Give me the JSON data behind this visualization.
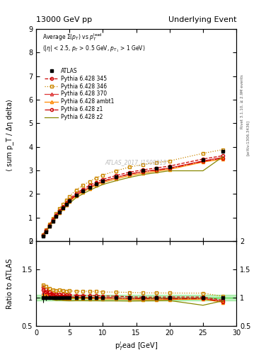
{
  "title_left": "13000 GeV pp",
  "title_right": "Underlying Event",
  "watermark": "ATLAS_2017_I1509919",
  "right_label_top": "Rivet 3.1.10, ≥ 2.9M events",
  "right_label_bottom": "[arXiv:1306.3436]",
  "ylabel_main": "⟨ sum p_T / Δη delta⟩",
  "ylabel_ratio": "Ratio to ATLAS",
  "xlabel": "p$_T^l$ead [GeV]",
  "ylim_main": [
    0,
    9
  ],
  "ylim_ratio": [
    0.5,
    2.0
  ],
  "xlim": [
    0,
    30
  ],
  "atlas_x": [
    1.0,
    1.5,
    2.0,
    2.5,
    3.0,
    3.5,
    4.0,
    4.5,
    5.0,
    6.0,
    7.0,
    8.0,
    9.0,
    10.0,
    12.0,
    14.0,
    16.0,
    18.0,
    20.0,
    25.0,
    28.0
  ],
  "atlas_y": [
    0.22,
    0.4,
    0.62,
    0.85,
    1.05,
    1.22,
    1.4,
    1.57,
    1.7,
    1.95,
    2.12,
    2.28,
    2.42,
    2.55,
    2.72,
    2.88,
    3.0,
    3.08,
    3.15,
    3.45,
    3.8
  ],
  "atlas_yerr": [
    0.02,
    0.02,
    0.02,
    0.02,
    0.02,
    0.02,
    0.02,
    0.02,
    0.02,
    0.02,
    0.02,
    0.02,
    0.02,
    0.02,
    0.02,
    0.02,
    0.02,
    0.02,
    0.05,
    0.05,
    0.06
  ],
  "pythia_x": [
    1.0,
    1.5,
    2.0,
    2.5,
    3.0,
    3.5,
    4.0,
    4.5,
    5.0,
    6.0,
    7.0,
    8.0,
    9.0,
    10.0,
    12.0,
    14.0,
    16.0,
    18.0,
    20.0,
    25.0,
    28.0
  ],
  "series": [
    {
      "label": "Pythia 6.428 345",
      "color": "#cc0000",
      "linestyle": "--",
      "marker": "o",
      "markersize": 3,
      "y": [
        0.26,
        0.46,
        0.68,
        0.92,
        1.12,
        1.3,
        1.48,
        1.64,
        1.78,
        2.03,
        2.2,
        2.36,
        2.5,
        2.62,
        2.78,
        2.92,
        3.02,
        3.1,
        3.18,
        3.48,
        3.62
      ]
    },
    {
      "label": "Pythia 6.428 346",
      "color": "#cc8800",
      "linestyle": ":",
      "marker": "s",
      "markersize": 3,
      "y": [
        0.27,
        0.48,
        0.72,
        0.97,
        1.18,
        1.38,
        1.57,
        1.74,
        1.9,
        2.17,
        2.36,
        2.53,
        2.68,
        2.8,
        2.98,
        3.14,
        3.25,
        3.33,
        3.4,
        3.72,
        3.88
      ]
    },
    {
      "label": "Pythia 6.428 370",
      "color": "#dd3333",
      "linestyle": "-",
      "marker": "^",
      "markersize": 3,
      "y": [
        0.24,
        0.43,
        0.65,
        0.88,
        1.07,
        1.24,
        1.42,
        1.58,
        1.71,
        1.96,
        2.13,
        2.28,
        2.42,
        2.54,
        2.7,
        2.84,
        2.95,
        3.02,
        3.1,
        3.4,
        3.55
      ]
    },
    {
      "label": "Pythia 6.428 ambt1",
      "color": "#ff8800",
      "linestyle": "-",
      "marker": "^",
      "markersize": 3,
      "y": [
        0.23,
        0.42,
        0.63,
        0.85,
        1.04,
        1.21,
        1.38,
        1.54,
        1.67,
        1.91,
        2.08,
        2.23,
        2.37,
        2.48,
        2.64,
        2.78,
        2.88,
        2.96,
        3.04,
        3.35,
        3.48
      ]
    },
    {
      "label": "Pythia 6.428 z1",
      "color": "#cc0000",
      "linestyle": "-.",
      "marker": "o",
      "markersize": 3,
      "y": [
        0.25,
        0.44,
        0.66,
        0.89,
        1.08,
        1.25,
        1.43,
        1.58,
        1.72,
        1.96,
        2.13,
        2.28,
        2.42,
        2.54,
        2.7,
        2.84,
        2.94,
        3.01,
        3.08,
        3.38,
        3.52
      ]
    },
    {
      "label": "Pythia 6.428 z2",
      "color": "#888800",
      "linestyle": "-",
      "marker": null,
      "markersize": 0,
      "y": [
        0.22,
        0.4,
        0.61,
        0.82,
        1.0,
        1.16,
        1.33,
        1.48,
        1.6,
        1.84,
        2.0,
        2.15,
        2.28,
        2.4,
        2.56,
        2.7,
        2.82,
        2.9,
        2.98,
        2.98,
        3.58
      ]
    }
  ],
  "ratio_band_color": "#00cc00",
  "ratio_band_alpha": 0.25,
  "background_color": "#ffffff"
}
